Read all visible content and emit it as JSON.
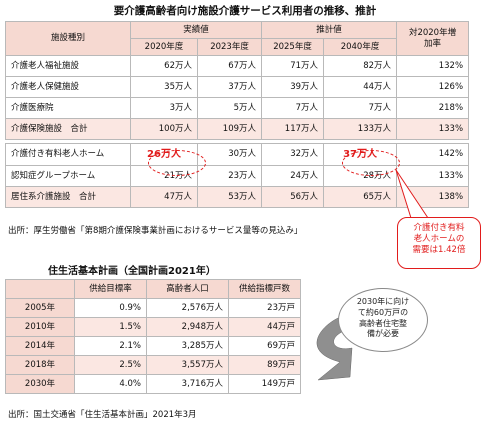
{
  "title1": "要介護高齢者向け施設介護サービス利用者の推移、推計",
  "table1": {
    "h_facility": "施設種別",
    "h_actual": "実績値",
    "h_estimate": "推計値",
    "h_increase": "対2020年増加率",
    "years": [
      "2020年度",
      "2023年度",
      "2025年度",
      "2040年度"
    ],
    "rows": [
      {
        "name": "介護老人福祉施設",
        "v": [
          "62万人",
          "67万人",
          "71万人",
          "82万人"
        ],
        "rate": "132%"
      },
      {
        "name": "介護老人保健施設",
        "v": [
          "35万人",
          "37万人",
          "39万人",
          "44万人"
        ],
        "rate": "126%"
      },
      {
        "name": "介護医療院",
        "v": [
          "3万人",
          "5万人",
          "7万人",
          "7万人"
        ],
        "rate": "218%"
      },
      {
        "name": "介護保険施設　合計",
        "v": [
          "100万人",
          "109万人",
          "117万人",
          "133万人"
        ],
        "rate": "133%"
      },
      {
        "name": "介護付き有料老人ホーム",
        "v": [
          "26万人",
          "30万人",
          "32万人",
          "37万人"
        ],
        "rate": "142%"
      },
      {
        "name": "認知症グループホーム",
        "v": [
          "21万人",
          "23万人",
          "24万人",
          "28万人"
        ],
        "rate": "133%"
      },
      {
        "name": "居住系介護施設　合計",
        "v": [
          "47万人",
          "53万人",
          "56万人",
          "65万人"
        ],
        "rate": "138%"
      }
    ]
  },
  "source1": "出所：厚生労働省「第8期介護保険事業計画におけるサービス量等の見込み」",
  "callout1": [
    "介護付き有料",
    "老人ホームの",
    "需要は1.42倍"
  ],
  "title2": "住生活基本計画（全国計画2021年）",
  "table2": {
    "headers": [
      "",
      "供給目標率",
      "高齢者人口",
      "供給指標戸数"
    ],
    "rows": [
      {
        "year": "2005年",
        "rate": "0.9%",
        "pop": "2,576万人",
        "units": "23万戸"
      },
      {
        "year": "2010年",
        "rate": "1.5%",
        "pop": "2,948万人",
        "units": "44万戸"
      },
      {
        "year": "2014年",
        "rate": "2.1%",
        "pop": "3,285万人",
        "units": "69万戸"
      },
      {
        "year": "2018年",
        "rate": "2.5%",
        "pop": "3,557万人",
        "units": "89万戸"
      },
      {
        "year": "2030年",
        "rate": "4.0%",
        "pop": "3,716万人",
        "units": "149万戸"
      }
    ]
  },
  "callout2": [
    "2030年に向け",
    "て約60万戸の",
    "高齢者住宅整",
    "備が必要"
  ],
  "source2": "出所：国土交通省「住生活基本計画」2021年3月"
}
